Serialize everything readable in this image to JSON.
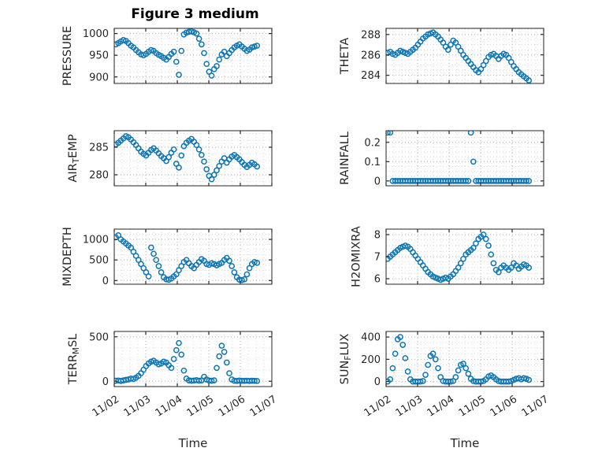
{
  "title": "Figure 3 medium",
  "xlabel": "Time",
  "xlim": [
    0,
    5
  ],
  "x_ticks": [
    {
      "v": 0,
      "label": "11/02"
    },
    {
      "v": 1,
      "label": "11/03"
    },
    {
      "v": 2,
      "label": "11/04"
    },
    {
      "v": 3,
      "label": "11/05"
    },
    {
      "v": 4,
      "label": "11/06"
    },
    {
      "v": 5,
      "label": "11/07"
    }
  ],
  "style": {
    "marker_color": "#0E76B4",
    "axis_color": "#262626",
    "grid_color": "#b0b0b0",
    "minor_grid_color": "#d7d7d7"
  },
  "x_days": [
    0.05,
    0.13,
    0.21,
    0.29,
    0.37,
    0.45,
    0.53,
    0.61,
    0.69,
    0.77,
    0.85,
    0.93,
    1.01,
    1.09,
    1.17,
    1.25,
    1.33,
    1.41,
    1.49,
    1.57,
    1.65,
    1.73,
    1.81,
    1.89,
    1.97,
    2.05,
    2.13,
    2.21,
    2.29,
    2.37,
    2.45,
    2.53,
    2.61,
    2.69,
    2.77,
    2.85,
    2.93,
    3.01,
    3.09,
    3.17,
    3.25,
    3.33,
    3.41,
    3.49,
    3.57,
    3.65,
    3.73,
    3.81,
    3.89,
    3.97,
    4.05,
    4.13,
    4.21,
    4.29,
    4.37,
    4.45,
    4.53
  ],
  "chart_data": [
    {
      "type": "scatter",
      "name": "pressure",
      "ylabel": "PRESSURE",
      "ylabel_parts": [
        {
          "text": "PRESSURE",
          "sub": false
        }
      ],
      "ylim": [
        885,
        1012
      ],
      "yticks": [
        {
          "v": 900,
          "label": "900"
        },
        {
          "v": 950,
          "label": "950"
        },
        {
          "v": 1000,
          "label": "1000"
        }
      ],
      "y": [
        975,
        978,
        982,
        985,
        983,
        978,
        972,
        968,
        962,
        957,
        952,
        950,
        953,
        958,
        962,
        960,
        955,
        951,
        948,
        944,
        940,
        946,
        953,
        958,
        935,
        905,
        960,
        998,
        1002,
        1004,
        1005,
        1003,
        1000,
        988,
        975,
        955,
        930,
        912,
        903,
        918,
        925,
        940,
        952,
        958,
        948,
        955,
        962,
        968,
        972,
        975,
        970,
        965,
        960,
        963,
        968,
        970,
        972
      ]
    },
    {
      "type": "scatter",
      "name": "theta",
      "ylabel": "THETA",
      "ylabel_parts": [
        {
          "text": "THETA",
          "sub": false
        }
      ],
      "ylim": [
        283.2,
        288.6
      ],
      "yticks": [
        {
          "v": 284,
          "label": "284"
        },
        {
          "v": 286,
          "label": "286"
        },
        {
          "v": 288,
          "label": "288"
        }
      ],
      "y": [
        286.2,
        286.3,
        286.1,
        286.0,
        286.2,
        286.4,
        286.3,
        286.2,
        286.1,
        286.3,
        286.5,
        286.7,
        287.0,
        287.3,
        287.6,
        287.8,
        288.0,
        288.1,
        288.2,
        288.0,
        287.8,
        287.5,
        287.2,
        286.8,
        286.5,
        287.0,
        287.4,
        287.2,
        286.8,
        286.4,
        286.0,
        285.7,
        285.4,
        285.1,
        284.8,
        284.5,
        284.3,
        284.6,
        285.0,
        285.4,
        285.8,
        286.0,
        286.1,
        285.9,
        285.6,
        285.9,
        286.1,
        286.0,
        285.7,
        285.3,
        284.9,
        284.6,
        284.3,
        284.1,
        283.9,
        283.7,
        283.5
      ]
    },
    {
      "type": "scatter",
      "name": "air-temp",
      "ylabel": "AIR_TEMP",
      "ylabel_parts": [
        {
          "text": "AIR",
          "sub": false
        },
        {
          "text": "T",
          "sub": true
        },
        {
          "text": "EMP",
          "sub": false
        }
      ],
      "ylim": [
        278,
        288
      ],
      "yticks": [
        {
          "v": 280,
          "label": "280"
        },
        {
          "v": 285,
          "label": "285"
        }
      ],
      "y": [
        285.5,
        285.8,
        286.2,
        286.6,
        287.0,
        286.8,
        286.4,
        285.9,
        285.4,
        284.8,
        284.2,
        283.8,
        283.5,
        284.0,
        284.5,
        284.8,
        284.4,
        283.9,
        283.4,
        283.0,
        282.5,
        283.2,
        284.0,
        284.6,
        282.0,
        281.3,
        283.5,
        285.2,
        285.8,
        286.2,
        286.5,
        286.0,
        285.4,
        284.6,
        283.6,
        282.4,
        281.0,
        279.8,
        279.2,
        280.0,
        280.8,
        281.6,
        282.4,
        283.0,
        282.2,
        282.8,
        283.3,
        283.6,
        283.2,
        282.8,
        282.3,
        281.8,
        281.4,
        281.8,
        282.2,
        281.9,
        281.5
      ]
    },
    {
      "type": "scatter",
      "name": "rainfall",
      "ylabel": "RAINFALL",
      "ylabel_parts": [
        {
          "text": "RAINFALL",
          "sub": false
        }
      ],
      "ylim": [
        -0.025,
        0.26
      ],
      "yticks": [
        {
          "v": 0,
          "label": "0"
        },
        {
          "v": 0.1,
          "label": "0.1"
        },
        {
          "v": 0.2,
          "label": "0.2"
        }
      ],
      "y": [
        0.25,
        0.25,
        0,
        0,
        0,
        0,
        0,
        0,
        0,
        0,
        0,
        0,
        0,
        0,
        0,
        0,
        0,
        0,
        0,
        0,
        0,
        0,
        0,
        0,
        0,
        0,
        0,
        0,
        0,
        0,
        0,
        0,
        0,
        0.25,
        0.1,
        0,
        0,
        0,
        0,
        0,
        0,
        0,
        0,
        0,
        0,
        0,
        0,
        0,
        0,
        0,
        0,
        0,
        0,
        0,
        0,
        0,
        0
      ]
    },
    {
      "type": "scatter",
      "name": "mixdepth",
      "ylabel": "MIXDEPTH",
      "ylabel_parts": [
        {
          "text": "MIXDEPTH",
          "sub": false
        }
      ],
      "ylim": [
        -90,
        1250
      ],
      "yticks": [
        {
          "v": 0,
          "label": "0"
        },
        {
          "v": 500,
          "label": "500"
        },
        {
          "v": 1000,
          "label": "1000"
        }
      ],
      "y": [
        1050,
        1100,
        1000,
        950,
        900,
        850,
        800,
        700,
        600,
        500,
        400,
        300,
        200,
        100,
        800,
        650,
        500,
        350,
        200,
        80,
        30,
        20,
        50,
        100,
        150,
        250,
        350,
        450,
        500,
        420,
        350,
        300,
        380,
        450,
        520,
        480,
        400,
        380,
        420,
        400,
        370,
        400,
        430,
        500,
        550,
        480,
        350,
        200,
        80,
        20,
        10,
        30,
        150,
        300,
        400,
        450,
        430
      ]
    },
    {
      "type": "scatter",
      "name": "h2omixra",
      "ylabel": "H2OMIXRA",
      "ylabel_parts": [
        {
          "text": "H2OMIXRA",
          "sub": false
        }
      ],
      "ylim": [
        5.75,
        8.25
      ],
      "yticks": [
        {
          "v": 6,
          "label": "6"
        },
        {
          "v": 7,
          "label": "7"
        },
        {
          "v": 8,
          "label": "8"
        }
      ],
      "y": [
        6.9,
        7.0,
        7.1,
        7.2,
        7.3,
        7.4,
        7.45,
        7.5,
        7.45,
        7.35,
        7.2,
        7.05,
        6.9,
        6.75,
        6.6,
        6.45,
        6.3,
        6.2,
        6.1,
        6.05,
        6.0,
        5.95,
        6.0,
        6.05,
        6.0,
        6.1,
        6.2,
        6.35,
        6.5,
        6.7,
        6.9,
        7.1,
        7.2,
        7.3,
        7.4,
        7.6,
        7.8,
        7.9,
        8.0,
        7.8,
        7.5,
        7.1,
        6.7,
        6.4,
        6.3,
        6.5,
        6.6,
        6.5,
        6.4,
        6.5,
        6.7,
        6.6,
        6.45,
        6.55,
        6.65,
        6.6,
        6.5
      ]
    },
    {
      "type": "scatter",
      "name": "terr-msl",
      "ylabel": "TERR_MSL",
      "ylabel_parts": [
        {
          "text": "TERR",
          "sub": false
        },
        {
          "text": "M",
          "sub": true
        },
        {
          "text": "SL",
          "sub": false
        }
      ],
      "ylim": [
        -60,
        560
      ],
      "yticks": [
        {
          "v": 0,
          "label": "0"
        },
        {
          "v": 500,
          "label": "500"
        }
      ],
      "y": [
        5,
        8,
        3,
        10,
        15,
        20,
        30,
        25,
        40,
        60,
        90,
        130,
        170,
        200,
        220,
        230,
        210,
        190,
        200,
        220,
        210,
        180,
        150,
        250,
        350,
        430,
        300,
        120,
        30,
        10,
        5,
        8,
        12,
        6,
        10,
        50,
        20,
        8,
        5,
        10,
        150,
        280,
        400,
        330,
        210,
        90,
        20,
        5,
        3,
        8,
        5,
        4,
        6,
        3,
        5,
        4,
        3
      ]
    },
    {
      "type": "scatter",
      "name": "sun-flux",
      "ylabel": "SUN_FLUX",
      "ylabel_parts": [
        {
          "text": "SUN",
          "sub": false
        },
        {
          "text": "F",
          "sub": true
        },
        {
          "text": "LUX",
          "sub": false
        }
      ],
      "ylim": [
        -45,
        450
      ],
      "yticks": [
        {
          "v": 0,
          "label": "0"
        },
        {
          "v": 200,
          "label": "200"
        },
        {
          "v": 400,
          "label": "400"
        }
      ],
      "y": [
        0,
        20,
        120,
        250,
        380,
        400,
        330,
        210,
        90,
        20,
        0,
        0,
        0,
        0,
        5,
        60,
        150,
        230,
        250,
        200,
        120,
        40,
        5,
        0,
        0,
        0,
        5,
        40,
        100,
        150,
        160,
        120,
        70,
        25,
        5,
        0,
        0,
        0,
        5,
        20,
        45,
        55,
        40,
        20,
        5,
        0,
        0,
        0,
        0,
        5,
        15,
        25,
        30,
        20,
        30,
        25,
        15
      ]
    }
  ]
}
